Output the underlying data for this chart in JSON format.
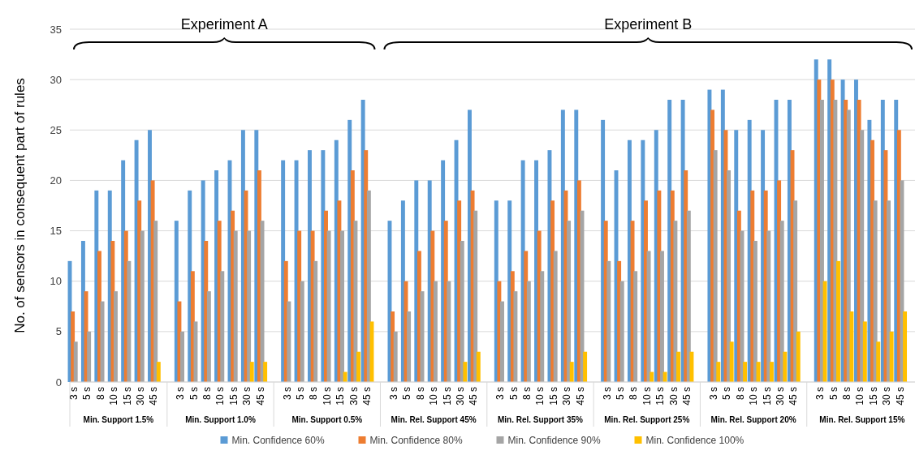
{
  "chart_data": {
    "type": "bar",
    "ylabel": "No. of sensors in consequent part of rules",
    "categories": [
      "3 s",
      "5 s",
      "8 s",
      "10 s",
      "15 s",
      "30 s",
      "45 s",
      "3 s",
      "5 s",
      "8 s",
      "10 s",
      "15 s",
      "30 s",
      "45 s",
      "3 s",
      "5 s",
      "8 s",
      "10 s",
      "15 s",
      "30 s",
      "45 s",
      "3 s",
      "5 s",
      "8 s",
      "10 s",
      "15 s",
      "30 s",
      "45 s",
      "3 s",
      "5 s",
      "8 s",
      "10 s",
      "15 s",
      "30 s",
      "45 s",
      "3 s",
      "5 s",
      "8 s",
      "10 s",
      "15 s",
      "30 s",
      "45 s",
      "3 s",
      "5 s",
      "8 s",
      "10 s",
      "15 s",
      "30 s",
      "45 s",
      "3 s",
      "5 s",
      "8 s",
      "10 s",
      "15 s",
      "30 s",
      "45 s"
    ],
    "annotations": [
      "Min. Support 1.5%",
      "Min. Support 1.0%",
      "Min. Support 0.5%",
      "Min. Rel. Support 45%",
      "Min. Rel. Support 35%",
      "Min. Rel. Support 25%",
      "Min. Rel. Support 20%",
      "Min. Rel. Support 15%",
      "Experiment A",
      "Experiment B"
    ],
    "series": [
      {
        "name": "Min. Confidence 60%",
        "color": "#5b9bd5",
        "values": [
          12,
          14,
          19,
          19,
          22,
          24,
          25,
          16,
          19,
          20,
          21,
          22,
          25,
          25,
          22,
          22,
          23,
          23,
          24,
          26,
          28,
          16,
          18,
          20,
          20,
          22,
          24,
          27,
          18,
          18,
          22,
          22,
          23,
          27,
          27,
          26,
          21,
          24,
          24,
          25,
          28,
          28,
          29,
          29,
          25,
          26,
          25,
          28,
          28,
          32,
          32,
          30,
          30,
          26,
          28,
          28
        ]
      },
      {
        "name": "Min. Confidence 80%",
        "color": "#ed7d31",
        "values": [
          7,
          9,
          13,
          14,
          15,
          18,
          20,
          8,
          11,
          14,
          16,
          17,
          19,
          21,
          12,
          15,
          15,
          17,
          18,
          21,
          23,
          7,
          10,
          13,
          15,
          16,
          18,
          19,
          10,
          11,
          13,
          15,
          18,
          19,
          20,
          16,
          12,
          16,
          18,
          19,
          19,
          21,
          27,
          25,
          17,
          19,
          19,
          20,
          23,
          30,
          30,
          28,
          28,
          24,
          23,
          25
        ]
      },
      {
        "name": "Min. Confidence 90%",
        "color": "#a5a5a5",
        "values": [
          4,
          5,
          8,
          9,
          12,
          15,
          16,
          5,
          6,
          9,
          11,
          15,
          15,
          16,
          8,
          10,
          12,
          15,
          15,
          16,
          19,
          5,
          7,
          9,
          10,
          10,
          14,
          17,
          8,
          9,
          10,
          11,
          13,
          16,
          17,
          12,
          10,
          11,
          13,
          13,
          16,
          17,
          23,
          21,
          15,
          14,
          15,
          16,
          18,
          28,
          28,
          27,
          25,
          18,
          18,
          20
        ]
      },
      {
        "name": "Min. Confidence 100%",
        "color": "#ffc000",
        "values": [
          0,
          0,
          0,
          0,
          0,
          0,
          2,
          0,
          0,
          0,
          0,
          0,
          2,
          2,
          0,
          0,
          0,
          0,
          1,
          3,
          6,
          0,
          0,
          0,
          0,
          0,
          2,
          3,
          0,
          0,
          0,
          0,
          0,
          2,
          3,
          0,
          0,
          0,
          1,
          1,
          3,
          3,
          2,
          4,
          2,
          2,
          2,
          3,
          5,
          10,
          12,
          7,
          6,
          4,
          5,
          7
        ]
      }
    ],
    "ylim": [
      0,
      35
    ],
    "yticks": [
      0,
      5,
      10,
      15,
      20,
      25,
      30,
      35
    ],
    "grid": "y",
    "legend": "bottom"
  }
}
